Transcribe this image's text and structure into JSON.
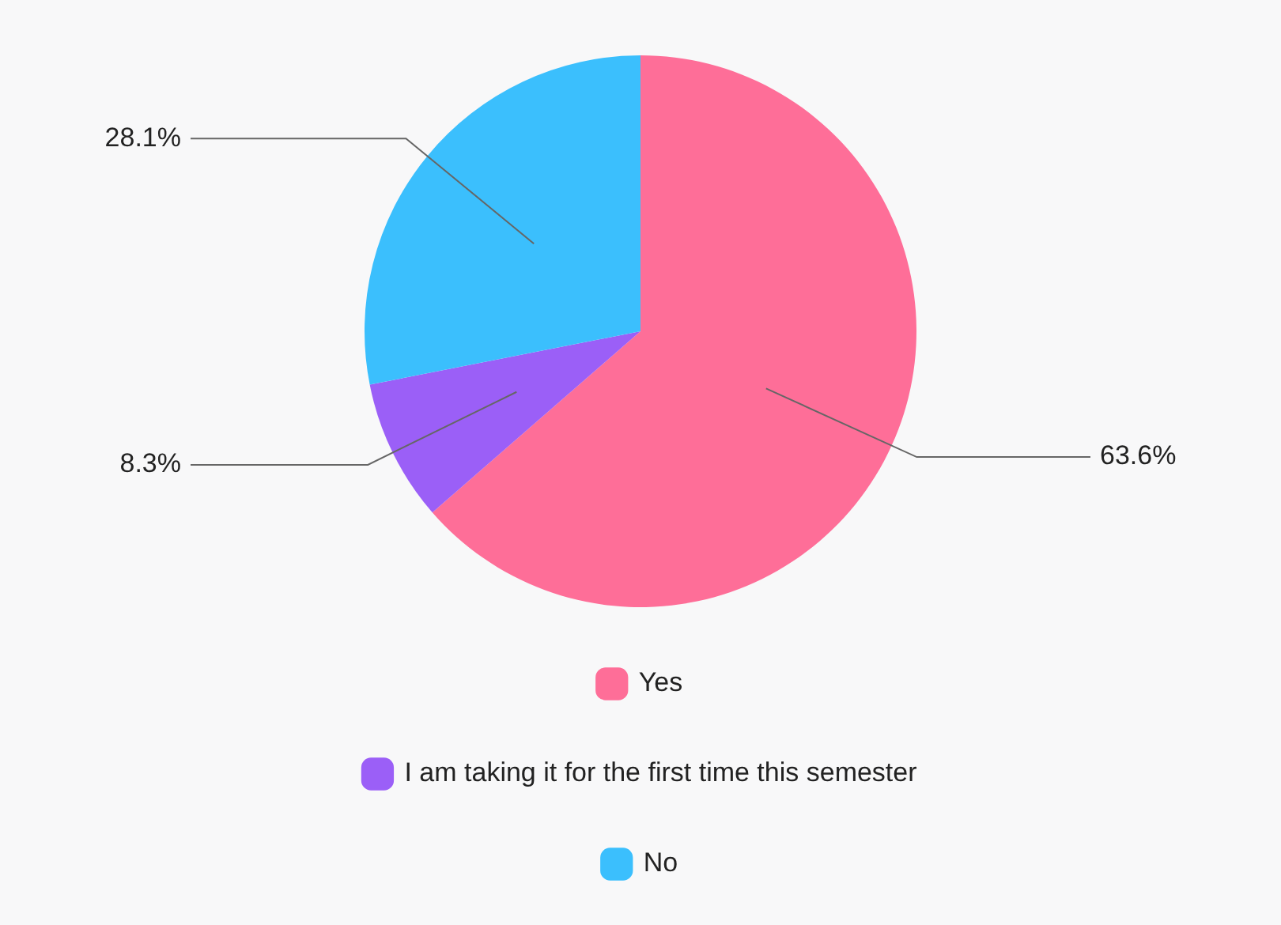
{
  "chart_data": {
    "type": "pie",
    "categories": [
      "Yes",
      "I am taking it for the first time this semester",
      "No"
    ],
    "values": [
      63.6,
      8.3,
      28.1
    ],
    "colors": [
      "#fe6e98",
      "#9b5ff7",
      "#3bbffd"
    ],
    "value_labels": [
      "63.6%",
      "8.3%",
      "28.1%"
    ],
    "legend": "bottom"
  }
}
